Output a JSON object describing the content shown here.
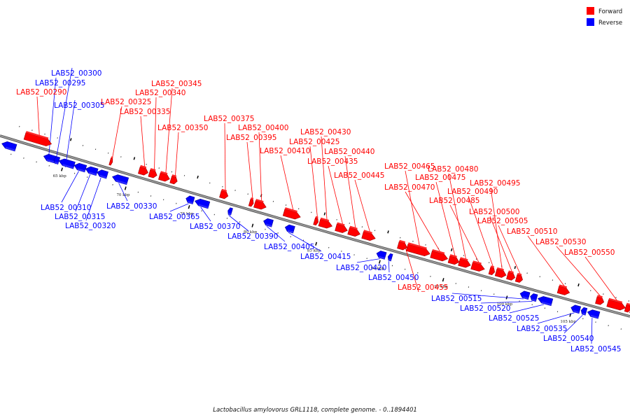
{
  "legend": [
    {
      "label": "Forward",
      "color": "#ff0000"
    },
    {
      "label": "Reverse",
      "color": "#0000ff"
    }
  ],
  "caption": "Lactobacillus amylovorus GRL1118, complete genome. - 0..1894401",
  "colors": {
    "forward": "#ff0000",
    "reverse": "#0000ff",
    "backbone": "#808080"
  },
  "scale": {
    "start_kbp": 59.8,
    "end_kbp": 109.4
  },
  "ticks": [
    {
      "kbp": 65,
      "label": "65 kbp"
    },
    {
      "kbp": 70,
      "label": "70 kbp"
    },
    {
      "kbp": 75,
      "label": "75 kbp"
    },
    {
      "kbp": 80,
      "label": "80 kbp"
    },
    {
      "kbp": 85,
      "label": "85 kbp"
    },
    {
      "kbp": 90,
      "label": "90 kbp"
    },
    {
      "kbp": 95,
      "label": "95 kbp"
    },
    {
      "kbp": 100,
      "label": "100 kbp"
    },
    {
      "kbp": 105,
      "label": "105 kbp"
    }
  ],
  "genes": [
    {
      "id": "g1",
      "strand": "reverse",
      "start_kbp": 60.1,
      "end_kbp": 61.2
    },
    {
      "id": "LAB52_00290",
      "strand": "forward",
      "start_kbp": 61.6,
      "end_kbp": 63.7
    },
    {
      "id": "LAB52_00295",
      "strand": "reverse",
      "start_kbp": 63.4,
      "end_kbp": 64.3
    },
    {
      "id": "LAB52_00300",
      "strand": "reverse",
      "start_kbp": 64.2,
      "end_kbp": 64.6
    },
    {
      "id": "LAB52_00305",
      "strand": "reverse",
      "start_kbp": 64.6,
      "end_kbp": 65.8
    },
    {
      "id": "LAB52_00310",
      "strand": "reverse",
      "start_kbp": 65.8,
      "end_kbp": 66.7
    },
    {
      "id": "LAB52_00315",
      "strand": "reverse",
      "start_kbp": 66.7,
      "end_kbp": 67.6
    },
    {
      "id": "LAB52_00320",
      "strand": "reverse",
      "start_kbp": 67.6,
      "end_kbp": 68.4
    },
    {
      "id": "LAB52_00325",
      "strand": "forward",
      "start_kbp": 68.3,
      "end_kbp": 68.5
    },
    {
      "id": "LAB52_00330",
      "strand": "reverse",
      "start_kbp": 68.8,
      "end_kbp": 70.0
    },
    {
      "id": "LAB52_00335",
      "strand": "forward",
      "start_kbp": 70.6,
      "end_kbp": 71.3
    },
    {
      "id": "LAB52_00340",
      "strand": "forward",
      "start_kbp": 71.4,
      "end_kbp": 72.0
    },
    {
      "id": "LAB52_00345",
      "strand": "forward",
      "start_kbp": 72.2,
      "end_kbp": 73.0
    },
    {
      "id": "LAB52_00350",
      "strand": "forward",
      "start_kbp": 73.1,
      "end_kbp": 73.6
    },
    {
      "id": "LAB52_00365",
      "strand": "reverse",
      "start_kbp": 74.6,
      "end_kbp": 75.2
    },
    {
      "id": "LAB52_00370",
      "strand": "reverse",
      "start_kbp": 75.3,
      "end_kbp": 76.4
    },
    {
      "id": "LAB52_00375",
      "strand": "forward",
      "start_kbp": 77.0,
      "end_kbp": 77.6
    },
    {
      "id": "LAB52_00390",
      "strand": "reverse",
      "start_kbp": 77.9,
      "end_kbp": 78.2
    },
    {
      "id": "LAB52_00395",
      "strand": "forward",
      "start_kbp": 79.3,
      "end_kbp": 79.6
    },
    {
      "id": "LAB52_00400",
      "strand": "forward",
      "start_kbp": 79.7,
      "end_kbp": 80.6
    },
    {
      "id": "LAB52_00405",
      "strand": "reverse",
      "start_kbp": 80.7,
      "end_kbp": 81.4
    },
    {
      "id": "LAB52_00415",
      "strand": "reverse",
      "start_kbp": 82.4,
      "end_kbp": 83.1
    },
    {
      "id": "LAB52_00410",
      "strand": "forward",
      "start_kbp": 82.0,
      "end_kbp": 83.3
    },
    {
      "id": "LAB52_00425",
      "strand": "forward",
      "start_kbp": 84.4,
      "end_kbp": 84.7
    },
    {
      "id": "LAB52_00430",
      "strand": "forward",
      "start_kbp": 84.8,
      "end_kbp": 85.8
    },
    {
      "id": "LAB52_00435",
      "strand": "forward",
      "start_kbp": 86.1,
      "end_kbp": 87.0
    },
    {
      "id": "LAB52_00440",
      "strand": "forward",
      "start_kbp": 87.1,
      "end_kbp": 88.0
    },
    {
      "id": "LAB52_00445",
      "strand": "forward",
      "start_kbp": 88.2,
      "end_kbp": 89.2
    },
    {
      "id": "LAB52_00420",
      "strand": "reverse",
      "start_kbp": 89.6,
      "end_kbp": 90.3
    },
    {
      "id": "LAB52_00450",
      "strand": "reverse",
      "start_kbp": 90.5,
      "end_kbp": 90.8
    },
    {
      "id": "LAB52_00455",
      "strand": "forward",
      "start_kbp": 91.0,
      "end_kbp": 91.7
    },
    {
      "id": "LAB52_00465",
      "strand": "forward",
      "start_kbp": 91.7,
      "end_kbp": 93.5
    },
    {
      "id": "LAB52_00470",
      "strand": "forward",
      "start_kbp": 93.6,
      "end_kbp": 94.9
    },
    {
      "id": "LAB52_00475",
      "strand": "forward",
      "start_kbp": 95.0,
      "end_kbp": 95.8
    },
    {
      "id": "LAB52_00480",
      "strand": "forward",
      "start_kbp": 95.8,
      "end_kbp": 96.7
    },
    {
      "id": "LAB52_00485",
      "strand": "forward",
      "start_kbp": 96.8,
      "end_kbp": 97.8
    },
    {
      "id": "LAB52_00490",
      "strand": "forward",
      "start_kbp": 98.2,
      "end_kbp": 98.6
    },
    {
      "id": "LAB52_00495",
      "strand": "forward",
      "start_kbp": 98.7,
      "end_kbp": 99.5
    },
    {
      "id": "LAB52_00500",
      "strand": "forward",
      "start_kbp": 99.6,
      "end_kbp": 100.2
    },
    {
      "id": "LAB52_00505",
      "strand": "forward",
      "start_kbp": 100.3,
      "end_kbp": 100.8
    },
    {
      "id": "LAB52_00515",
      "strand": "reverse",
      "start_kbp": 100.9,
      "end_kbp": 101.6
    },
    {
      "id": "LAB52_00520",
      "strand": "reverse",
      "start_kbp": 101.7,
      "end_kbp": 102.2
    },
    {
      "id": "LAB52_00525",
      "strand": "reverse",
      "start_kbp": 102.3,
      "end_kbp": 103.4
    },
    {
      "id": "LAB52_00510",
      "strand": "forward",
      "start_kbp": 103.6,
      "end_kbp": 104.5
    },
    {
      "id": "LAB52_00535",
      "strand": "reverse",
      "start_kbp": 104.9,
      "end_kbp": 105.6
    },
    {
      "id": "LAB52_00540",
      "strand": "reverse",
      "start_kbp": 105.7,
      "end_kbp": 106.1
    },
    {
      "id": "LAB52_00545",
      "strand": "reverse",
      "start_kbp": 106.2,
      "end_kbp": 107.1
    },
    {
      "id": "LAB52_00530",
      "strand": "forward",
      "start_kbp": 106.6,
      "end_kbp": 107.2
    },
    {
      "id": "LAB52_00550",
      "strand": "forward",
      "start_kbp": 107.5,
      "end_kbp": 108.9
    },
    {
      "id": "g2",
      "strand": "forward",
      "start_kbp": 108.9,
      "end_kbp": 109.3
    },
    {
      "id": "g3",
      "strand": "forward",
      "start_kbp": 109.3,
      "end_kbp": 109.6
    }
  ]
}
